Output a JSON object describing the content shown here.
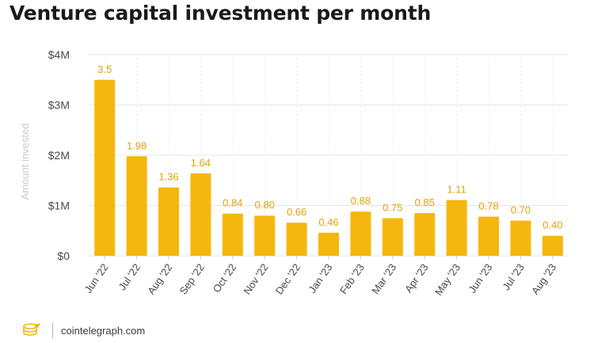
{
  "chart_data": {
    "type": "bar",
    "title": "Venture capital investment per month",
    "ylabel": "Amount invested",
    "xlabel": "",
    "ylim": [
      0,
      4
    ],
    "yticks": [
      {
        "value": 0,
        "label": "$0"
      },
      {
        "value": 1,
        "label": "$1M"
      },
      {
        "value": 2,
        "label": "$2M"
      },
      {
        "value": 3,
        "label": "$3M"
      },
      {
        "value": 4,
        "label": "$4M"
      }
    ],
    "categories": [
      "Jun '22",
      "Jul '22",
      "Aug '22",
      "Sep '22",
      "Oct '22",
      "Nov '22",
      "Dec '22",
      "Jan '23",
      "Feb '23",
      "Mar '23",
      "Apr '23",
      "May '23",
      "Jun '23",
      "Jul '23",
      "Aug '23"
    ],
    "values": [
      3.5,
      1.98,
      1.36,
      1.64,
      0.84,
      0.8,
      0.66,
      0.46,
      0.88,
      0.75,
      0.85,
      1.11,
      0.78,
      0.7,
      0.4
    ],
    "value_labels": [
      "3.5",
      "1.98",
      "1.36",
      "1.64",
      "0.84",
      "0.80",
      "0.66",
      "0.46",
      "0.88",
      "0.75",
      "0.85",
      "1.11",
      "0.78",
      "0.70",
      "0.40"
    ],
    "grid": true,
    "colors": {
      "bar": "#F5B70E",
      "label": "#E2A20A",
      "axis_text": "#4a4a4a",
      "ylabel": "#c9c9c9",
      "grid": "#e6e6e6"
    }
  },
  "footer": {
    "brand": "cointelegraph.com",
    "logo_icon": "cointelegraph-logo-icon"
  }
}
